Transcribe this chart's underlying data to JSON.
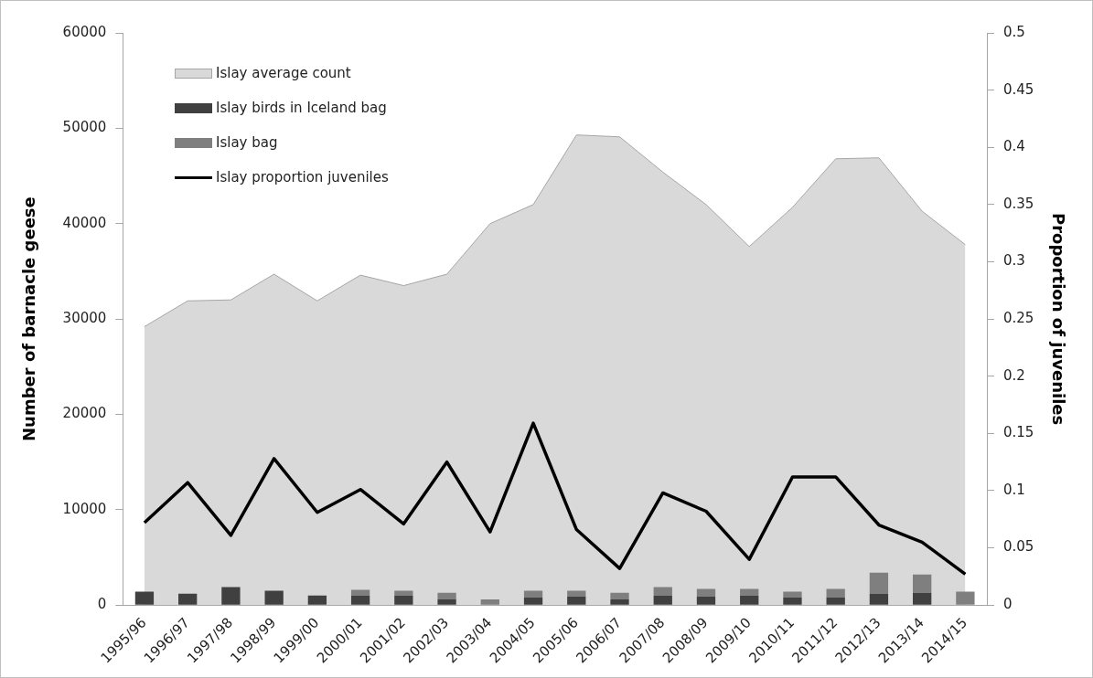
{
  "chart_data": {
    "type": "bar",
    "ylabel": "Number of barnacle geese",
    "y2label": "Proportion of juveniles",
    "categories": [
      "1995/96",
      "1996/97",
      "1997/98",
      "1998/99",
      "1999/00",
      "2000/01",
      "2001/02",
      "2002/03",
      "2003/04",
      "2004/05",
      "2005/06",
      "2006/07",
      "2007/08",
      "2008/09",
      "2009/10",
      "2010/11",
      "2011/12",
      "2012/13",
      "2013/14",
      "2014/15"
    ],
    "stacked": true,
    "legend": "top left",
    "grid": false,
    "marker": "none",
    "ylim": [
      0,
      60000
    ],
    "yticks": [
      0,
      10000,
      20000,
      30000,
      40000,
      50000,
      60000
    ],
    "y2lim": [
      0,
      0.5
    ],
    "y2ticks": [
      0,
      0.05,
      0.1,
      0.15,
      0.2,
      0.25,
      0.3,
      0.35,
      0.4,
      0.45,
      0.5
    ],
    "series": [
      {
        "name": "Islay average count",
        "type": "area",
        "color": "#d9d9d9",
        "values": [
          29200,
          31900,
          32000,
          34700,
          31900,
          34600,
          33500,
          34700,
          40000,
          42000,
          49300,
          49100,
          45400,
          42000,
          37600,
          41700,
          46800,
          46900,
          41300,
          37800
        ]
      },
      {
        "name": "Islay birds in Iceland bag",
        "color": "#404040",
        "values": [
          1400,
          1200,
          1900,
          1500,
          1000,
          1000,
          1000,
          600,
          0,
          800,
          900,
          600,
          1000,
          900,
          1000,
          800,
          800,
          1200,
          1300,
          0
        ]
      },
      {
        "name": "Islay bag",
        "color": "#7f7f7f",
        "values": [
          0,
          0,
          0,
          0,
          0,
          600,
          500,
          700,
          600,
          700,
          600,
          700,
          900,
          800,
          700,
          600,
          900,
          2200,
          1900,
          1400
        ]
      },
      {
        "name": "Islay proportion juveniles",
        "type": "line",
        "axis": "y2",
        "color": "#000000",
        "values": [
          0.072,
          0.107,
          0.061,
          0.128,
          0.081,
          0.101,
          0.071,
          0.125,
          0.064,
          0.159,
          0.066,
          0.032,
          0.098,
          0.082,
          0.04,
          0.112,
          0.112,
          0.07,
          0.055,
          0.027
        ]
      }
    ]
  }
}
